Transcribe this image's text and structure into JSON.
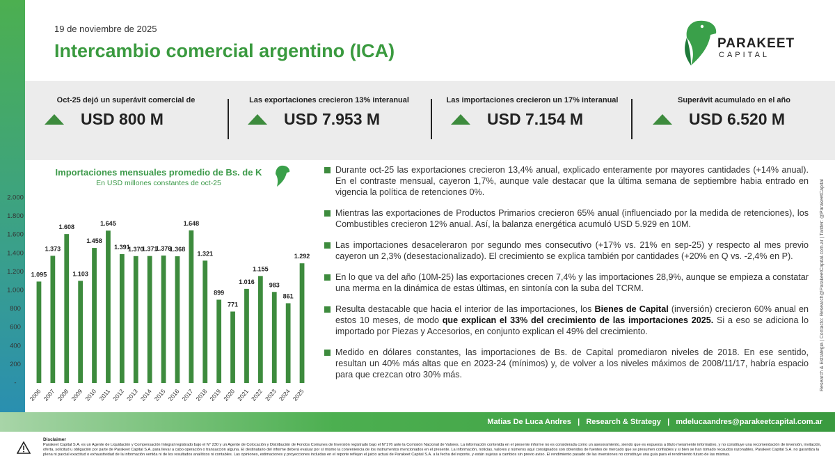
{
  "header": {
    "date": "19 de noviembre de 2025",
    "title": "Intercambio comercial argentino (ICA)",
    "logo_name": "PARAKEET",
    "logo_sub": "CAPITAL"
  },
  "kpis": [
    {
      "label": "Oct-25 dejó un superávit comercial de",
      "value": "USD 800 M"
    },
    {
      "label": "Las exportaciones crecieron 13% interanual",
      "value": "USD 7.953 M"
    },
    {
      "label": "Las importaciones crecieron un 17% interanual",
      "value": "USD 7.154 M"
    },
    {
      "label": "Superávit acumulado en el año",
      "value": "USD 6.520 M"
    }
  ],
  "chart_data": {
    "type": "bar",
    "title": "Importaciones mensuales promedio de Bs. de K",
    "subtitle": "En USD millones constantes de oct-25",
    "categories": [
      "2006",
      "2007",
      "2008",
      "2009",
      "2010",
      "2011",
      "2012",
      "2013",
      "2014",
      "2015",
      "2016",
      "2017",
      "2018",
      "2019",
      "2020",
      "2021",
      "2022",
      "2023",
      "2024",
      "2025"
    ],
    "values": [
      1095,
      1373,
      1608,
      1103,
      1458,
      1645,
      1391,
      1370,
      1371,
      1376,
      1368,
      1648,
      1321,
      899,
      771,
      1016,
      1155,
      983,
      861,
      1292
    ],
    "value_labels": [
      "1.095",
      "1.373",
      "1.608",
      "1.103",
      "1.458",
      "1.645",
      "1.391",
      "1.370",
      "1.371",
      "1.376",
      "1.368",
      "1.648",
      "1.321",
      "899",
      "771",
      "1.016",
      "1.155",
      "983",
      "861",
      "1.292"
    ],
    "color": "#3d8b3d",
    "ylim": [
      0,
      2000
    ],
    "yticks": [
      {
        "value": 0,
        "label": "-"
      },
      200,
      400,
      600,
      800,
      {
        "value": 1000,
        "label": "1.000"
      },
      {
        "value": 1200,
        "label": "1.200"
      },
      {
        "value": 1400,
        "label": "1.400"
      },
      {
        "value": 1600,
        "label": "1.600"
      },
      {
        "value": 1800,
        "label": "1.800"
      },
      {
        "value": 2000,
        "label": "2.000"
      }
    ],
    "grid": false
  },
  "bullets": [
    [
      {
        "text": "Durante oct-25 las exportaciones crecieron 13,4% anual, explicado enteramente por mayores cantidades (+14% anual). En el contraste mensual, cayeron 1,7%, aunque vale destacar que la última semana de septiembre habia entrado en vigencia la política de retenciones 0%."
      }
    ],
    [
      {
        "text": "Mientras las exportaciones de Productos Primarios crecieron 65% anual (influenciado por la medida de retenciones), los Combustibles crecieron 12% anual. Así, la balanza energética acumuló USD 5.929 en 10M."
      }
    ],
    [
      {
        "text": "Las importaciones desaceleraron por segundo mes consecutivo (+17% vs. 21% en sep-25) y respecto al mes previo cayeron un 2,3% (desestacionalizado). El crecimiento se explica también por cantidades (+20% en Q vs. -2,4% en P)."
      }
    ],
    [
      {
        "text": "En lo que va del año (10M-25) las exportaciones crecen 7,4% y las importaciones 28,9%, aunque se empieza a constatar una merma en la dinámica de estas últimas, en sintonía con la suba del TCRM."
      }
    ],
    [
      {
        "text": "Resulta destacable que hacia el interior de las importaciones, los "
      },
      {
        "text": "Bienes de Capital",
        "bold": true
      },
      {
        "text": " (inversión) crecieron 60% anual en estos 10 meses, de modo "
      },
      {
        "text": "que explican el 33% del crecimiento de las importaciones 2025.",
        "bold": true
      },
      {
        "text": " Si a eso se adiciona lo importado por Piezas y Accesorios, en conjunto explican el 49% del crecimiento."
      }
    ],
    [
      {
        "text": "Medido en dólares constantes, las importaciones de Bs. de Capital promediaron niveles de 2018. En ese sentido, resultan un 40% más altas que en 2023-24 (mínimos) y, de volver a los niveles máximos de 2008/11/17, habría espacio para que crezcan otro 30% más."
      }
    ]
  ],
  "side_note": "Research & Estrategia | Contacto: Research@ParakeetCapital.com.ar | Twitter: @ParakeetCapital",
  "footer": "Matias De Luca Andres   |   Research & Strategy   |   mdelucaandres@parakeetcapital.com.ar",
  "disclaimer": {
    "label": "Disclaimer",
    "text": "Parakeet Capital S.A. es un Agente de Liquidación y Compensación Integral registrado bajo el N° 230 y un Agente de Colocación y Distribución de Fondos Comunes de Inversión registrado bajo el N°176 ante la Comisión Nacional de Valores. La información contenida en el presente informe no es considerada como un asesoramiento, siendo que es expuesta a título meramente informativo, y no constituye una recomendación de inversión, invitación, oferta, solicitud u obligación por parte de Parakeet Capital S.A. para llevar a cabo operación o transacción alguna. El destinatario del informe deberá evaluar por sí mismo la conveniencia de los instrumentos mencionados en el presente. La información, noticias, valores y números aquí consignados son obtenidos de fuentes de mercado que se presumen confiables y si bien se han tomado recaudos razonables, Parakeet Capital S.A. no garantiza la plena ni parcial exactitud o exhaustividad de la información vertida ni de los resultados analíticos ni contables. Las opiniones, estimaciones y proyecciones incluidas en el reporte reflejan el juicio actual de Parakeet Capital S.A. a la fecha del reporte, y están sujetas a cambios sin previo aviso. El rendimiento pasado de las inversiones no constituye una guía para el rendimiento futuro de las mismas."
  }
}
